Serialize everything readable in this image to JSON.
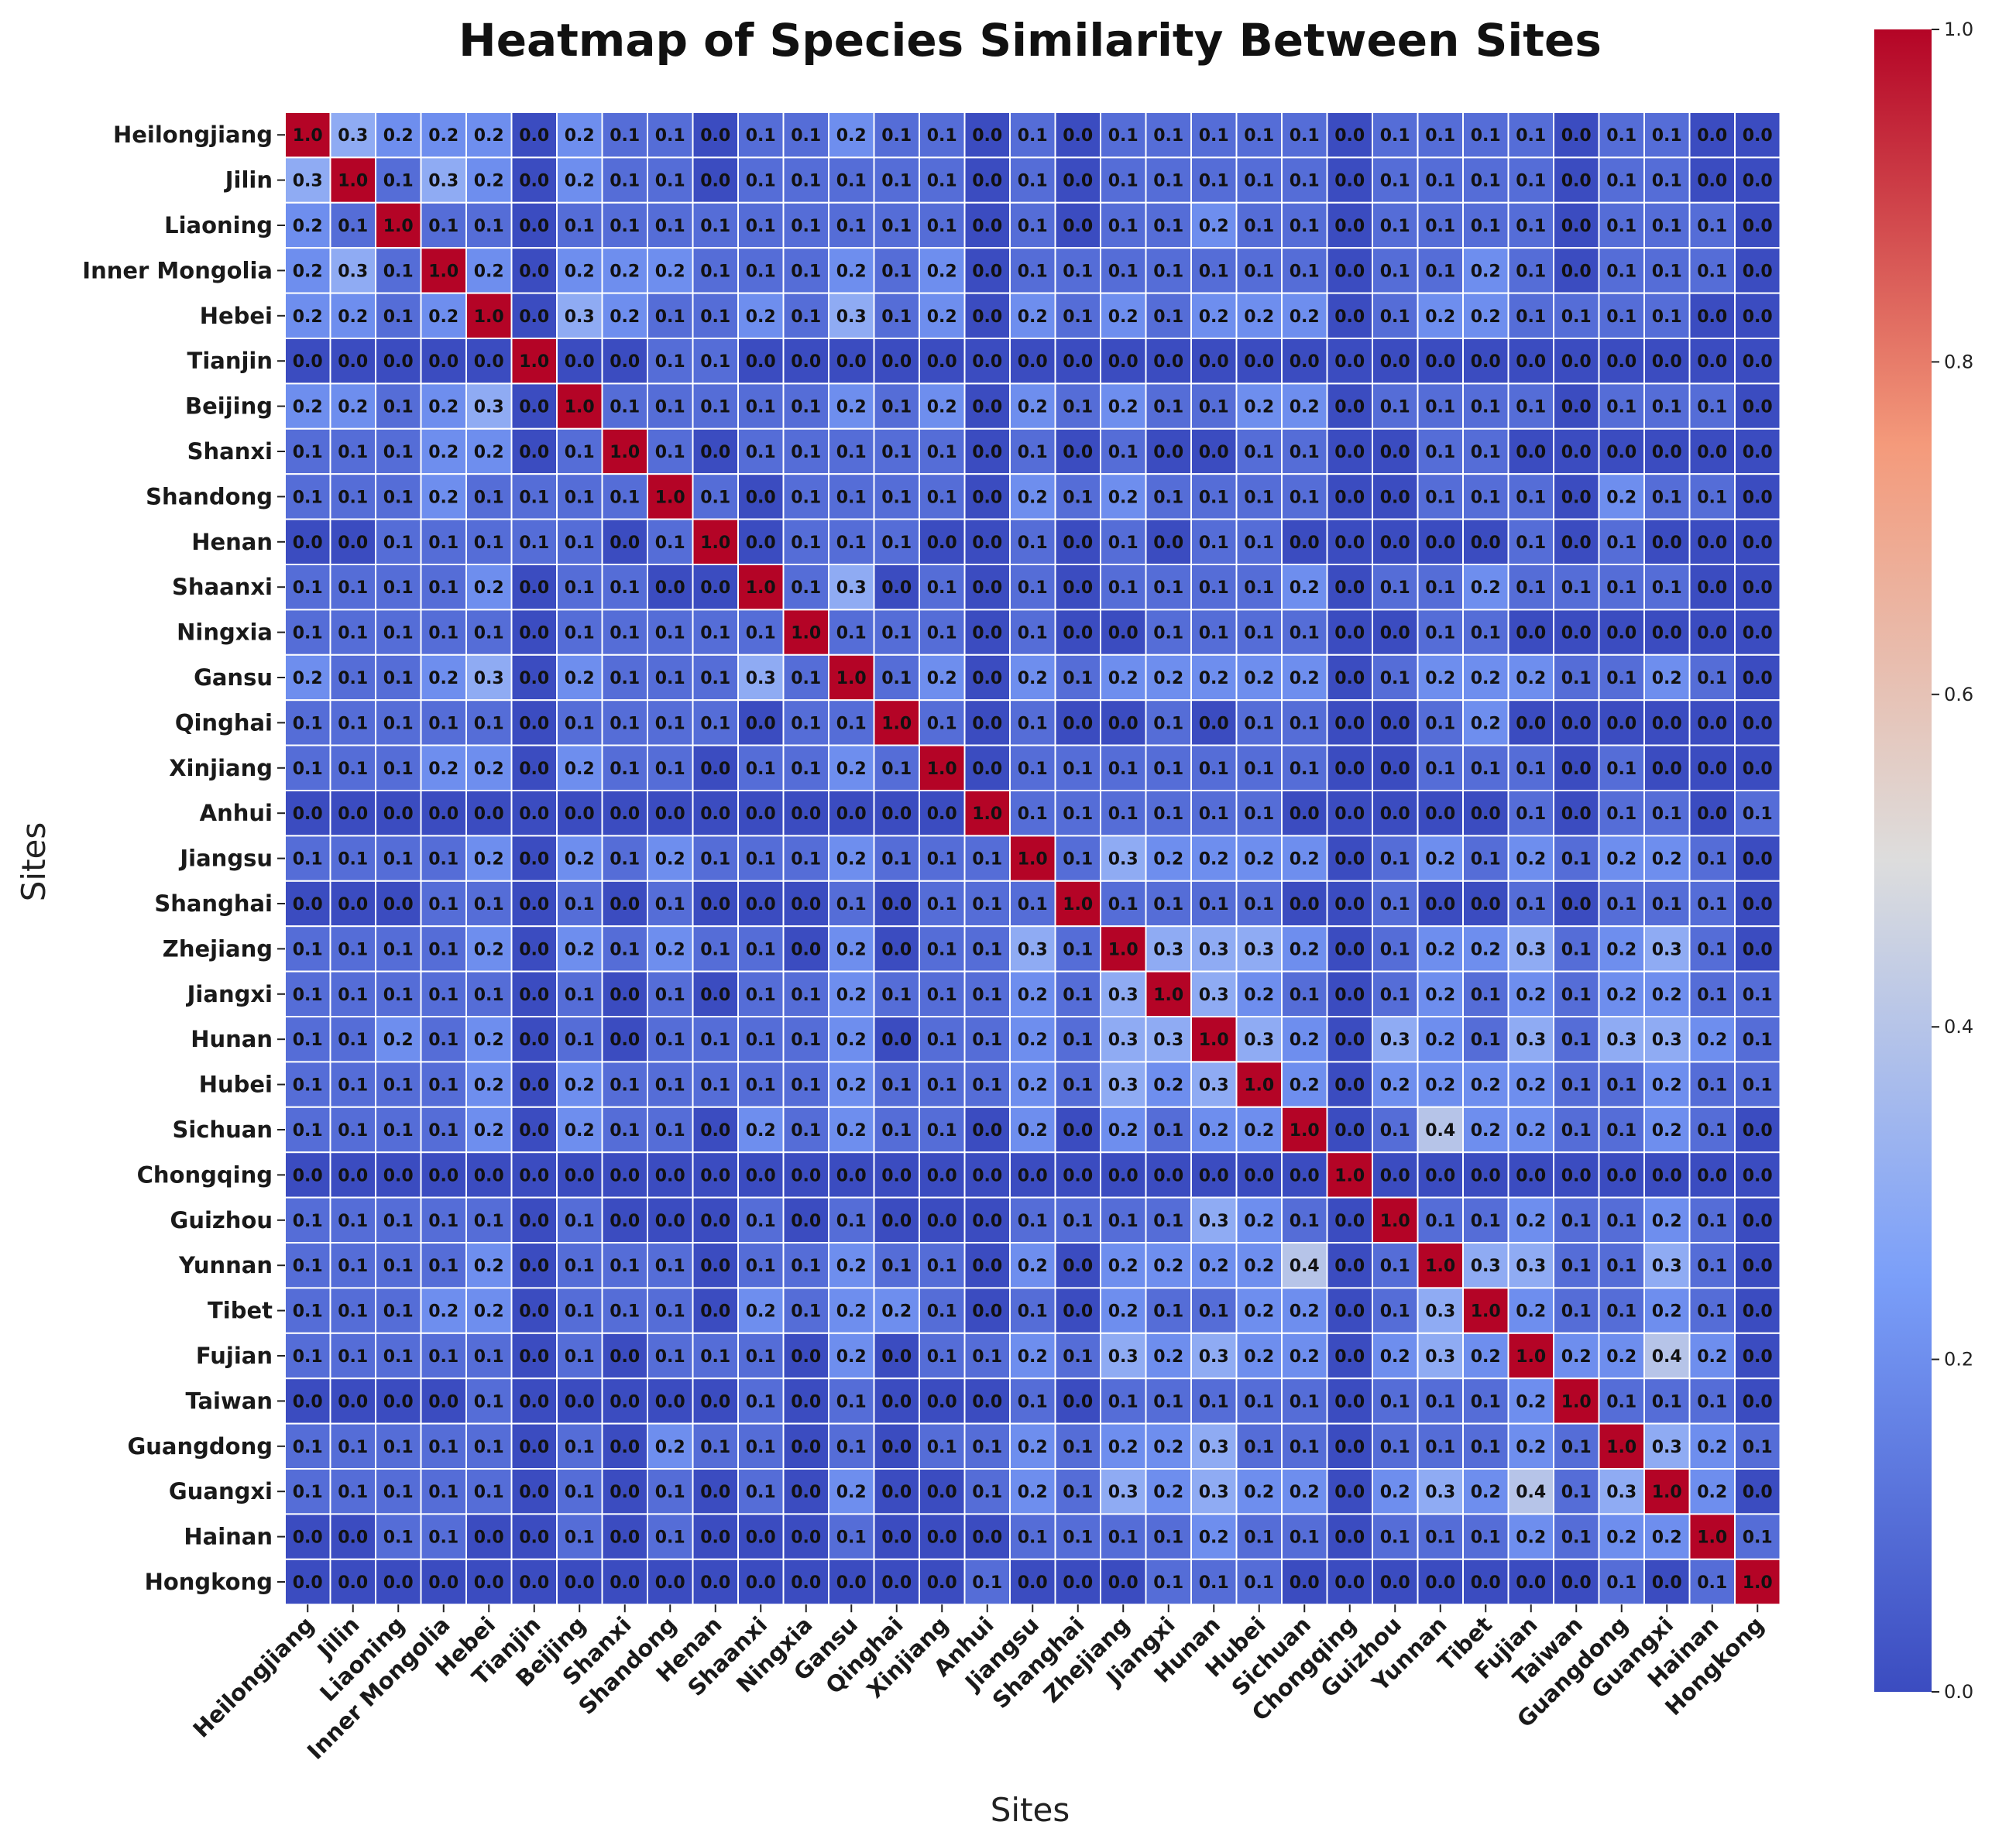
{
  "chart_data": {
    "type": "heatmap",
    "title": "Heatmap of Species Similarity Between Sites",
    "xlabel": "Sites",
    "ylabel": "Sites",
    "colormap": "coolwarm",
    "colorbar": {
      "min": 0.0,
      "max": 1.0,
      "ticks": [
        "0.0",
        "0.2",
        "0.4",
        "0.6",
        "0.8",
        "1.0"
      ],
      "position": "right"
    },
    "colors": {
      "low": "#3b4cc0",
      "mid": "#dddddd",
      "high": "#b40426"
    },
    "labels": [
      "Heilongjiang",
      "Jilin",
      "Liaoning",
      "Inner Mongolia",
      "Hebei",
      "Tianjin",
      "Beijing",
      "Shanxi",
      "Shandong",
      "Henan",
      "Shaanxi",
      "Ningxia",
      "Gansu",
      "Qinghai",
      "Xinjiang",
      "Anhui",
      "Jiangsu",
      "Shanghai",
      "Zhejiang",
      "Jiangxi",
      "Hunan",
      "Hubei",
      "Sichuan",
      "Chongqing",
      "Guizhou",
      "Yunnan",
      "Tibet",
      "Fujian",
      "Taiwan",
      "Guangdong",
      "Guangxi",
      "Hainan",
      "Hongkong"
    ],
    "values": [
      [
        1.0,
        0.3,
        0.2,
        0.2,
        0.2,
        0.0,
        0.2,
        0.1,
        0.1,
        0.0,
        0.1,
        0.1,
        0.2,
        0.1,
        0.1,
        0.0,
        0.1,
        0.0,
        0.1,
        0.1,
        0.1,
        0.1,
        0.1,
        0.0,
        0.1,
        0.1,
        0.1,
        0.1,
        0.0,
        0.1,
        0.1,
        0.0,
        0.0
      ],
      [
        0.3,
        1.0,
        0.1,
        0.3,
        0.2,
        0.0,
        0.2,
        0.1,
        0.1,
        0.0,
        0.1,
        0.1,
        0.1,
        0.1,
        0.1,
        0.0,
        0.1,
        0.0,
        0.1,
        0.1,
        0.1,
        0.1,
        0.1,
        0.0,
        0.1,
        0.1,
        0.1,
        0.1,
        0.0,
        0.1,
        0.1,
        0.0,
        0.0
      ],
      [
        0.2,
        0.1,
        1.0,
        0.1,
        0.1,
        0.0,
        0.1,
        0.1,
        0.1,
        0.1,
        0.1,
        0.1,
        0.1,
        0.1,
        0.1,
        0.0,
        0.1,
        0.0,
        0.1,
        0.1,
        0.2,
        0.1,
        0.1,
        0.0,
        0.1,
        0.1,
        0.1,
        0.1,
        0.0,
        0.1,
        0.1,
        0.1,
        0.0
      ],
      [
        0.2,
        0.3,
        0.1,
        1.0,
        0.2,
        0.0,
        0.2,
        0.2,
        0.2,
        0.1,
        0.1,
        0.1,
        0.2,
        0.1,
        0.2,
        0.0,
        0.1,
        0.1,
        0.1,
        0.1,
        0.1,
        0.1,
        0.1,
        0.0,
        0.1,
        0.1,
        0.2,
        0.1,
        0.0,
        0.1,
        0.1,
        0.1,
        0.0
      ],
      [
        0.2,
        0.2,
        0.1,
        0.2,
        1.0,
        0.0,
        0.3,
        0.2,
        0.1,
        0.1,
        0.2,
        0.1,
        0.3,
        0.1,
        0.2,
        0.0,
        0.2,
        0.1,
        0.2,
        0.1,
        0.2,
        0.2,
        0.2,
        0.0,
        0.1,
        0.2,
        0.2,
        0.1,
        0.1,
        0.1,
        0.1,
        0.0,
        0.0
      ],
      [
        0.0,
        0.0,
        0.0,
        0.0,
        0.0,
        1.0,
        0.0,
        0.0,
        0.1,
        0.1,
        0.0,
        0.0,
        0.0,
        0.0,
        0.0,
        0.0,
        0.0,
        0.0,
        0.0,
        0.0,
        0.0,
        0.0,
        0.0,
        0.0,
        0.0,
        0.0,
        0.0,
        0.0,
        0.0,
        0.0,
        0.0,
        0.0,
        0.0
      ],
      [
        0.2,
        0.2,
        0.1,
        0.2,
        0.3,
        0.0,
        1.0,
        0.1,
        0.1,
        0.1,
        0.1,
        0.1,
        0.2,
        0.1,
        0.2,
        0.0,
        0.2,
        0.1,
        0.2,
        0.1,
        0.1,
        0.2,
        0.2,
        0.0,
        0.1,
        0.1,
        0.1,
        0.1,
        0.0,
        0.1,
        0.1,
        0.1,
        0.0
      ],
      [
        0.1,
        0.1,
        0.1,
        0.2,
        0.2,
        0.0,
        0.1,
        1.0,
        0.1,
        0.0,
        0.1,
        0.1,
        0.1,
        0.1,
        0.1,
        0.0,
        0.1,
        0.0,
        0.1,
        0.0,
        0.0,
        0.1,
        0.1,
        0.0,
        0.0,
        0.1,
        0.1,
        0.0,
        0.0,
        0.0,
        0.0,
        0.0,
        0.0
      ],
      [
        0.1,
        0.1,
        0.1,
        0.2,
        0.1,
        0.1,
        0.1,
        0.1,
        1.0,
        0.1,
        0.0,
        0.1,
        0.1,
        0.1,
        0.1,
        0.0,
        0.2,
        0.1,
        0.2,
        0.1,
        0.1,
        0.1,
        0.1,
        0.0,
        0.0,
        0.1,
        0.1,
        0.1,
        0.0,
        0.2,
        0.1,
        0.1,
        0.0
      ],
      [
        0.0,
        0.0,
        0.1,
        0.1,
        0.1,
        0.1,
        0.1,
        0.0,
        0.1,
        1.0,
        0.0,
        0.1,
        0.1,
        0.1,
        0.0,
        0.0,
        0.1,
        0.0,
        0.1,
        0.0,
        0.1,
        0.1,
        0.0,
        0.0,
        0.0,
        0.0,
        0.0,
        0.1,
        0.0,
        0.1,
        0.0,
        0.0,
        0.0
      ],
      [
        0.1,
        0.1,
        0.1,
        0.1,
        0.2,
        0.0,
        0.1,
        0.1,
        0.0,
        0.0,
        1.0,
        0.1,
        0.3,
        0.0,
        0.1,
        0.0,
        0.1,
        0.0,
        0.1,
        0.1,
        0.1,
        0.1,
        0.2,
        0.0,
        0.1,
        0.1,
        0.2,
        0.1,
        0.1,
        0.1,
        0.1,
        0.0,
        0.0
      ],
      [
        0.1,
        0.1,
        0.1,
        0.1,
        0.1,
        0.0,
        0.1,
        0.1,
        0.1,
        0.1,
        0.1,
        1.0,
        0.1,
        0.1,
        0.1,
        0.0,
        0.1,
        0.0,
        0.0,
        0.1,
        0.1,
        0.1,
        0.1,
        0.0,
        0.0,
        0.1,
        0.1,
        0.0,
        0.0,
        0.0,
        0.0,
        0.0,
        0.0
      ],
      [
        0.2,
        0.1,
        0.1,
        0.2,
        0.3,
        0.0,
        0.2,
        0.1,
        0.1,
        0.1,
        0.3,
        0.1,
        1.0,
        0.1,
        0.2,
        0.0,
        0.2,
        0.1,
        0.2,
        0.2,
        0.2,
        0.2,
        0.2,
        0.0,
        0.1,
        0.2,
        0.2,
        0.2,
        0.1,
        0.1,
        0.2,
        0.1,
        0.0
      ],
      [
        0.1,
        0.1,
        0.1,
        0.1,
        0.1,
        0.0,
        0.1,
        0.1,
        0.1,
        0.1,
        0.0,
        0.1,
        0.1,
        1.0,
        0.1,
        0.0,
        0.1,
        0.0,
        0.0,
        0.1,
        0.0,
        0.1,
        0.1,
        0.0,
        0.0,
        0.1,
        0.2,
        0.0,
        0.0,
        0.0,
        0.0,
        0.0,
        0.0
      ],
      [
        0.1,
        0.1,
        0.1,
        0.2,
        0.2,
        0.0,
        0.2,
        0.1,
        0.1,
        0.0,
        0.1,
        0.1,
        0.2,
        0.1,
        1.0,
        0.0,
        0.1,
        0.1,
        0.1,
        0.1,
        0.1,
        0.1,
        0.1,
        0.0,
        0.0,
        0.1,
        0.1,
        0.1,
        0.0,
        0.1,
        0.0,
        0.0,
        0.0
      ],
      [
        0.0,
        0.0,
        0.0,
        0.0,
        0.0,
        0.0,
        0.0,
        0.0,
        0.0,
        0.0,
        0.0,
        0.0,
        0.0,
        0.0,
        0.0,
        1.0,
        0.1,
        0.1,
        0.1,
        0.1,
        0.1,
        0.1,
        0.0,
        0.0,
        0.0,
        0.0,
        0.0,
        0.1,
        0.0,
        0.1,
        0.1,
        0.0,
        0.1
      ],
      [
        0.1,
        0.1,
        0.1,
        0.1,
        0.2,
        0.0,
        0.2,
        0.1,
        0.2,
        0.1,
        0.1,
        0.1,
        0.2,
        0.1,
        0.1,
        0.1,
        1.0,
        0.1,
        0.3,
        0.2,
        0.2,
        0.2,
        0.2,
        0.0,
        0.1,
        0.2,
        0.1,
        0.2,
        0.1,
        0.2,
        0.2,
        0.1,
        0.0
      ],
      [
        0.0,
        0.0,
        0.0,
        0.1,
        0.1,
        0.0,
        0.1,
        0.0,
        0.1,
        0.0,
        0.0,
        0.0,
        0.1,
        0.0,
        0.1,
        0.1,
        0.1,
        1.0,
        0.1,
        0.1,
        0.1,
        0.1,
        0.0,
        0.0,
        0.1,
        0.0,
        0.0,
        0.1,
        0.0,
        0.1,
        0.1,
        0.1,
        0.0
      ],
      [
        0.1,
        0.1,
        0.1,
        0.1,
        0.2,
        0.0,
        0.2,
        0.1,
        0.2,
        0.1,
        0.1,
        0.0,
        0.2,
        0.0,
        0.1,
        0.1,
        0.3,
        0.1,
        1.0,
        0.3,
        0.3,
        0.3,
        0.2,
        0.0,
        0.1,
        0.2,
        0.2,
        0.3,
        0.1,
        0.2,
        0.3,
        0.1,
        0.0
      ],
      [
        0.1,
        0.1,
        0.1,
        0.1,
        0.1,
        0.0,
        0.1,
        0.0,
        0.1,
        0.0,
        0.1,
        0.1,
        0.2,
        0.1,
        0.1,
        0.1,
        0.2,
        0.1,
        0.3,
        1.0,
        0.3,
        0.2,
        0.1,
        0.0,
        0.1,
        0.2,
        0.1,
        0.2,
        0.1,
        0.2,
        0.2,
        0.1,
        0.1
      ],
      [
        0.1,
        0.1,
        0.2,
        0.1,
        0.2,
        0.0,
        0.1,
        0.0,
        0.1,
        0.1,
        0.1,
        0.1,
        0.2,
        0.0,
        0.1,
        0.1,
        0.2,
        0.1,
        0.3,
        0.3,
        1.0,
        0.3,
        0.2,
        0.0,
        0.3,
        0.2,
        0.1,
        0.3,
        0.1,
        0.3,
        0.3,
        0.2,
        0.1
      ],
      [
        0.1,
        0.1,
        0.1,
        0.1,
        0.2,
        0.0,
        0.2,
        0.1,
        0.1,
        0.1,
        0.1,
        0.1,
        0.2,
        0.1,
        0.1,
        0.1,
        0.2,
        0.1,
        0.3,
        0.2,
        0.3,
        1.0,
        0.2,
        0.0,
        0.2,
        0.2,
        0.2,
        0.2,
        0.1,
        0.1,
        0.2,
        0.1,
        0.1
      ],
      [
        0.1,
        0.1,
        0.1,
        0.1,
        0.2,
        0.0,
        0.2,
        0.1,
        0.1,
        0.0,
        0.2,
        0.1,
        0.2,
        0.1,
        0.1,
        0.0,
        0.2,
        0.0,
        0.2,
        0.1,
        0.2,
        0.2,
        1.0,
        0.0,
        0.1,
        0.4,
        0.2,
        0.2,
        0.1,
        0.1,
        0.2,
        0.1,
        0.0
      ],
      [
        0.0,
        0.0,
        0.0,
        0.0,
        0.0,
        0.0,
        0.0,
        0.0,
        0.0,
        0.0,
        0.0,
        0.0,
        0.0,
        0.0,
        0.0,
        0.0,
        0.0,
        0.0,
        0.0,
        0.0,
        0.0,
        0.0,
        0.0,
        1.0,
        0.0,
        0.0,
        0.0,
        0.0,
        0.0,
        0.0,
        0.0,
        0.0,
        0.0
      ],
      [
        0.1,
        0.1,
        0.1,
        0.1,
        0.1,
        0.0,
        0.1,
        0.0,
        0.0,
        0.0,
        0.1,
        0.0,
        0.1,
        0.0,
        0.0,
        0.0,
        0.1,
        0.1,
        0.1,
        0.1,
        0.3,
        0.2,
        0.1,
        0.0,
        1.0,
        0.1,
        0.1,
        0.2,
        0.1,
        0.1,
        0.2,
        0.1,
        0.0
      ],
      [
        0.1,
        0.1,
        0.1,
        0.1,
        0.2,
        0.0,
        0.1,
        0.1,
        0.1,
        0.0,
        0.1,
        0.1,
        0.2,
        0.1,
        0.1,
        0.0,
        0.2,
        0.0,
        0.2,
        0.2,
        0.2,
        0.2,
        0.4,
        0.0,
        0.1,
        1.0,
        0.3,
        0.3,
        0.1,
        0.1,
        0.3,
        0.1,
        0.0
      ],
      [
        0.1,
        0.1,
        0.1,
        0.2,
        0.2,
        0.0,
        0.1,
        0.1,
        0.1,
        0.0,
        0.2,
        0.1,
        0.2,
        0.2,
        0.1,
        0.0,
        0.1,
        0.0,
        0.2,
        0.1,
        0.1,
        0.2,
        0.2,
        0.0,
        0.1,
        0.3,
        1.0,
        0.2,
        0.1,
        0.1,
        0.2,
        0.1,
        0.0
      ],
      [
        0.1,
        0.1,
        0.1,
        0.1,
        0.1,
        0.0,
        0.1,
        0.0,
        0.1,
        0.1,
        0.1,
        0.0,
        0.2,
        0.0,
        0.1,
        0.1,
        0.2,
        0.1,
        0.3,
        0.2,
        0.3,
        0.2,
        0.2,
        0.0,
        0.2,
        0.3,
        0.2,
        1.0,
        0.2,
        0.2,
        0.4,
        0.2,
        0.0
      ],
      [
        0.0,
        0.0,
        0.0,
        0.0,
        0.1,
        0.0,
        0.0,
        0.0,
        0.0,
        0.0,
        0.1,
        0.0,
        0.1,
        0.0,
        0.0,
        0.0,
        0.1,
        0.0,
        0.1,
        0.1,
        0.1,
        0.1,
        0.1,
        0.0,
        0.1,
        0.1,
        0.1,
        0.2,
        1.0,
        0.1,
        0.1,
        0.1,
        0.0
      ],
      [
        0.1,
        0.1,
        0.1,
        0.1,
        0.1,
        0.0,
        0.1,
        0.0,
        0.2,
        0.1,
        0.1,
        0.0,
        0.1,
        0.0,
        0.1,
        0.1,
        0.2,
        0.1,
        0.2,
        0.2,
        0.3,
        0.1,
        0.1,
        0.0,
        0.1,
        0.1,
        0.1,
        0.2,
        0.1,
        1.0,
        0.3,
        0.2,
        0.1
      ],
      [
        0.1,
        0.1,
        0.1,
        0.1,
        0.1,
        0.0,
        0.1,
        0.0,
        0.1,
        0.0,
        0.1,
        0.0,
        0.2,
        0.0,
        0.0,
        0.1,
        0.2,
        0.1,
        0.3,
        0.2,
        0.3,
        0.2,
        0.2,
        0.0,
        0.2,
        0.3,
        0.2,
        0.4,
        0.1,
        0.3,
        1.0,
        0.2,
        0.0
      ],
      [
        0.0,
        0.0,
        0.1,
        0.1,
        0.0,
        0.0,
        0.1,
        0.0,
        0.1,
        0.0,
        0.0,
        0.0,
        0.1,
        0.0,
        0.0,
        0.0,
        0.1,
        0.1,
        0.1,
        0.1,
        0.2,
        0.1,
        0.1,
        0.0,
        0.1,
        0.1,
        0.1,
        0.2,
        0.1,
        0.2,
        0.2,
        1.0,
        0.1
      ],
      [
        0.0,
        0.0,
        0.0,
        0.0,
        0.0,
        0.0,
        0.0,
        0.0,
        0.0,
        0.0,
        0.0,
        0.0,
        0.0,
        0.0,
        0.0,
        0.1,
        0.0,
        0.0,
        0.0,
        0.1,
        0.1,
        0.1,
        0.0,
        0.0,
        0.0,
        0.0,
        0.0,
        0.0,
        0.0,
        0.1,
        0.0,
        0.1,
        1.0
      ]
    ]
  }
}
